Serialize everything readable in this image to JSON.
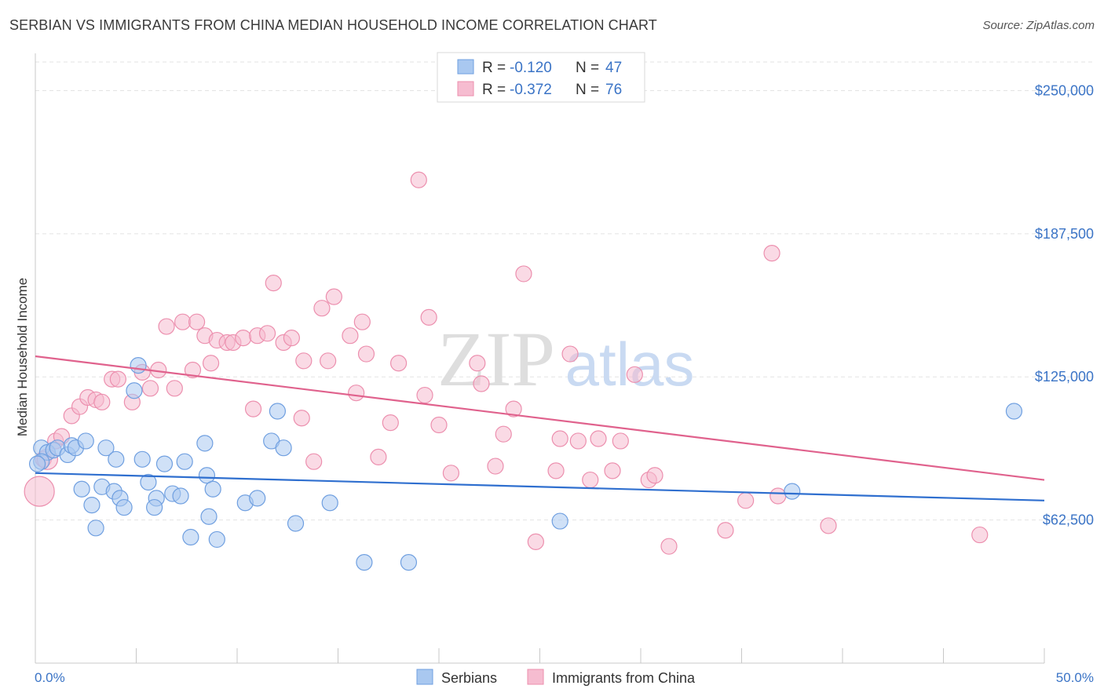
{
  "title": "SERBIAN VS IMMIGRANTS FROM CHINA MEDIAN HOUSEHOLD INCOME CORRELATION CHART",
  "source": "Source: ZipAtlas.com",
  "watermark": {
    "zip": "ZIP",
    "atlas": "atlas"
  },
  "legend_top": {
    "serbians": {
      "r_label": "R =",
      "r_value": "-0.120",
      "n_label": "N =",
      "n_value": "47"
    },
    "china": {
      "r_label": "R =",
      "r_value": "-0.372",
      "n_label": "N =",
      "n_value": "76"
    }
  },
  "legend_bottom": {
    "serbians": "Serbians",
    "china": "Immigrants from China"
  },
  "colors": {
    "serbians_fill": "#a9c8f0",
    "serbians_stroke": "#6f9fe0",
    "serbians_line": "#2f6fcf",
    "china_fill": "#f6bcd0",
    "china_stroke": "#ec8fae",
    "china_line": "#e0628d",
    "axis_label": "#3b74c6",
    "grid": "#e3e3e3"
  },
  "chart_data": {
    "type": "scatter",
    "title": "SERBIAN VS IMMIGRANTS FROM CHINA MEDIAN HOUSEHOLD INCOME CORRELATION CHART",
    "xlabel": "",
    "ylabel": "Median Household Income",
    "xlim": [
      0,
      50
    ],
    "ylim": [
      0,
      262500
    ],
    "x_tick_labels": [
      "0.0%",
      "50.0%"
    ],
    "y_ticks": [
      62500,
      125000,
      187500,
      250000
    ],
    "y_tick_labels": [
      "$62,500",
      "$125,000",
      "$187,500",
      "$250,000"
    ],
    "grid": true,
    "legend_placement": "top-center",
    "series": [
      {
        "name": "Serbians",
        "r": -0.12,
        "n": 47,
        "trend": {
          "x": [
            0,
            50
          ],
          "y": [
            83000,
            71000
          ]
        },
        "points": [
          {
            "x": 0.3,
            "y": 94000
          },
          {
            "x": 0.6,
            "y": 92000
          },
          {
            "x": 0.9,
            "y": 93000
          },
          {
            "x": 1.1,
            "y": 94000
          },
          {
            "x": 1.6,
            "y": 91000
          },
          {
            "x": 1.8,
            "y": 95000
          },
          {
            "x": 2.0,
            "y": 94000
          },
          {
            "x": 2.5,
            "y": 97000
          },
          {
            "x": 0.3,
            "y": 88000
          },
          {
            "x": 3.5,
            "y": 94000
          },
          {
            "x": 4.0,
            "y": 89000
          },
          {
            "x": 5.1,
            "y": 130000
          },
          {
            "x": 4.9,
            "y": 119000
          },
          {
            "x": 5.3,
            "y": 89000
          },
          {
            "x": 6.4,
            "y": 87000
          },
          {
            "x": 7.4,
            "y": 88000
          },
          {
            "x": 8.4,
            "y": 96000
          },
          {
            "x": 11.7,
            "y": 97000
          },
          {
            "x": 12.3,
            "y": 94000
          },
          {
            "x": 12.0,
            "y": 110000
          },
          {
            "x": 2.3,
            "y": 76000
          },
          {
            "x": 3.3,
            "y": 77000
          },
          {
            "x": 3.9,
            "y": 75000
          },
          {
            "x": 4.2,
            "y": 72000
          },
          {
            "x": 5.6,
            "y": 79000
          },
          {
            "x": 6.0,
            "y": 72000
          },
          {
            "x": 6.8,
            "y": 74000
          },
          {
            "x": 7.2,
            "y": 73000
          },
          {
            "x": 8.5,
            "y": 82000
          },
          {
            "x": 8.8,
            "y": 76000
          },
          {
            "x": 10.4,
            "y": 70000
          },
          {
            "x": 11.0,
            "y": 72000
          },
          {
            "x": 14.6,
            "y": 70000
          },
          {
            "x": 2.8,
            "y": 69000
          },
          {
            "x": 4.4,
            "y": 68000
          },
          {
            "x": 5.9,
            "y": 68000
          },
          {
            "x": 8.6,
            "y": 64000
          },
          {
            "x": 12.9,
            "y": 61000
          },
          {
            "x": 3.0,
            "y": 59000
          },
          {
            "x": 7.7,
            "y": 55000
          },
          {
            "x": 9.0,
            "y": 54000
          },
          {
            "x": 16.3,
            "y": 44000
          },
          {
            "x": 18.5,
            "y": 44000
          },
          {
            "x": 26.0,
            "y": 62000
          },
          {
            "x": 37.5,
            "y": 75000
          },
          {
            "x": 48.5,
            "y": 110000
          },
          {
            "x": 0.1,
            "y": 87000
          }
        ]
      },
      {
        "name": "Immigrants from China",
        "r": -0.372,
        "n": 76,
        "trend": {
          "x": [
            0,
            50
          ],
          "y": [
            134000,
            80000
          ]
        },
        "points": [
          {
            "x": 0.2,
            "y": 75000
          },
          {
            "x": 0.4,
            "y": 89000
          },
          {
            "x": 1.0,
            "y": 97000
          },
          {
            "x": 1.3,
            "y": 99000
          },
          {
            "x": 1.8,
            "y": 108000
          },
          {
            "x": 2.2,
            "y": 112000
          },
          {
            "x": 2.6,
            "y": 116000
          },
          {
            "x": 3.0,
            "y": 115000
          },
          {
            "x": 3.3,
            "y": 114000
          },
          {
            "x": 3.8,
            "y": 124000
          },
          {
            "x": 4.1,
            "y": 124000
          },
          {
            "x": 4.8,
            "y": 114000
          },
          {
            "x": 5.3,
            "y": 127000
          },
          {
            "x": 5.7,
            "y": 120000
          },
          {
            "x": 6.1,
            "y": 128000
          },
          {
            "x": 6.5,
            "y": 147000
          },
          {
            "x": 6.9,
            "y": 120000
          },
          {
            "x": 7.3,
            "y": 149000
          },
          {
            "x": 7.8,
            "y": 128000
          },
          {
            "x": 8.0,
            "y": 149000
          },
          {
            "x": 8.4,
            "y": 143000
          },
          {
            "x": 8.7,
            "y": 131000
          },
          {
            "x": 9.0,
            "y": 141000
          },
          {
            "x": 9.5,
            "y": 140000
          },
          {
            "x": 9.8,
            "y": 140000
          },
          {
            "x": 10.3,
            "y": 142000
          },
          {
            "x": 10.8,
            "y": 111000
          },
          {
            "x": 11.0,
            "y": 143000
          },
          {
            "x": 11.5,
            "y": 144000
          },
          {
            "x": 11.8,
            "y": 166000
          },
          {
            "x": 12.3,
            "y": 140000
          },
          {
            "x": 12.7,
            "y": 142000
          },
          {
            "x": 13.2,
            "y": 107000
          },
          {
            "x": 13.3,
            "y": 132000
          },
          {
            "x": 13.8,
            "y": 88000
          },
          {
            "x": 14.2,
            "y": 155000
          },
          {
            "x": 14.5,
            "y": 132000
          },
          {
            "x": 14.8,
            "y": 160000
          },
          {
            "x": 15.6,
            "y": 143000
          },
          {
            "x": 15.9,
            "y": 118000
          },
          {
            "x": 16.2,
            "y": 149000
          },
          {
            "x": 16.4,
            "y": 135000
          },
          {
            "x": 17.0,
            "y": 90000
          },
          {
            "x": 17.6,
            "y": 105000
          },
          {
            "x": 18.0,
            "y": 131000
          },
          {
            "x": 19.0,
            "y": 211000
          },
          {
            "x": 19.3,
            "y": 117000
          },
          {
            "x": 19.5,
            "y": 151000
          },
          {
            "x": 20.0,
            "y": 104000
          },
          {
            "x": 20.6,
            "y": 83000
          },
          {
            "x": 21.9,
            "y": 131000
          },
          {
            "x": 22.1,
            "y": 122000
          },
          {
            "x": 22.8,
            "y": 86000
          },
          {
            "x": 23.2,
            "y": 100000
          },
          {
            "x": 23.7,
            "y": 111000
          },
          {
            "x": 24.2,
            "y": 170000
          },
          {
            "x": 24.8,
            "y": 53000
          },
          {
            "x": 25.8,
            "y": 84000
          },
          {
            "x": 26.0,
            "y": 98000
          },
          {
            "x": 26.5,
            "y": 135000
          },
          {
            "x": 26.9,
            "y": 97000
          },
          {
            "x": 27.5,
            "y": 80000
          },
          {
            "x": 27.9,
            "y": 98000
          },
          {
            "x": 28.6,
            "y": 84000
          },
          {
            "x": 29.0,
            "y": 97000
          },
          {
            "x": 29.7,
            "y": 126000
          },
          {
            "x": 30.4,
            "y": 80000
          },
          {
            "x": 30.7,
            "y": 82000
          },
          {
            "x": 31.4,
            "y": 51000
          },
          {
            "x": 34.2,
            "y": 58000
          },
          {
            "x": 35.2,
            "y": 71000
          },
          {
            "x": 36.5,
            "y": 179000
          },
          {
            "x": 36.8,
            "y": 73000
          },
          {
            "x": 39.3,
            "y": 60000
          },
          {
            "x": 46.8,
            "y": 56000
          },
          {
            "x": 0.6,
            "y": 89000
          }
        ]
      }
    ]
  }
}
